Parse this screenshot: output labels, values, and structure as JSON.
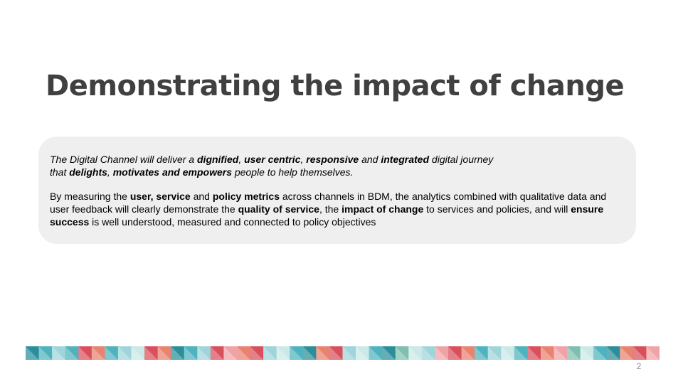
{
  "slide": {
    "title": "Demonstrating the impact of change",
    "page_number": "2"
  },
  "card": {
    "para1": [
      {
        "t": "The Digital Channel will  deliver a ",
        "b": false
      },
      {
        "t": "dignified",
        "b": true
      },
      {
        "t": ", ",
        "b": false
      },
      {
        "t": "user centric",
        "b": true
      },
      {
        "t": ", ",
        "b": false
      },
      {
        "t": "responsive",
        "b": true
      },
      {
        "t": " and ",
        "b": false
      },
      {
        "t": "integrated",
        "b": true
      },
      {
        "t": " digital journey",
        "b": false
      },
      {
        "br": true
      },
      {
        "t": "that ",
        "b": false
      },
      {
        "t": "delights",
        "b": true
      },
      {
        "t": ", ",
        "b": false
      },
      {
        "t": "motivates and empowers",
        "b": true
      },
      {
        "t": " people to help themselves.",
        "b": false
      }
    ],
    "para2": [
      {
        "t": "By measuring the ",
        "b": false
      },
      {
        "t": "user, service",
        "b": true
      },
      {
        "t": " and ",
        "b": false
      },
      {
        "t": "policy metrics",
        "b": true
      },
      {
        "t": " across channels in BDM, the analytics combined with qualitative data and user feedback will clearly demonstrate the ",
        "b": false
      },
      {
        "t": "quality of service",
        "b": true
      },
      {
        "t": ", the ",
        "b": false
      },
      {
        "t": "impact of change",
        "b": true
      },
      {
        "t": " to services and policies, and will ",
        "b": false
      },
      {
        "t": "ensure success",
        "b": true
      },
      {
        "t": " is well understood, measured and connected to policy objectives",
        "b": false
      }
    ]
  },
  "decorative_band": {
    "colors": {
      "teal_dark": "#2a8f9b",
      "teal": "#4fb3be",
      "teal_light": "#9fd5da",
      "mint": "#cbe9e6",
      "sage": "#7fbfb1",
      "red": "#d94f5c",
      "coral": "#e8836f",
      "pink": "#f0a3a6",
      "white": "#ffffff"
    },
    "pattern": [
      "teal_dark",
      "teal",
      "teal_light",
      "teal",
      "red",
      "coral",
      "teal",
      "teal_light",
      "mint",
      "red",
      "coral",
      "teal_dark",
      "teal",
      "teal_light",
      "red",
      "pink",
      "coral",
      "red",
      "teal_light",
      "mint",
      "teal",
      "teal_dark",
      "coral",
      "red",
      "teal_light",
      "mint",
      "teal",
      "teal_dark",
      "sage",
      "mint",
      "teal_light",
      "pink",
      "red",
      "coral",
      "teal",
      "teal_light",
      "mint",
      "teal",
      "red",
      "coral",
      "pink",
      "sage",
      "mint",
      "teal",
      "teal_dark",
      "coral",
      "red",
      "pink"
    ]
  }
}
